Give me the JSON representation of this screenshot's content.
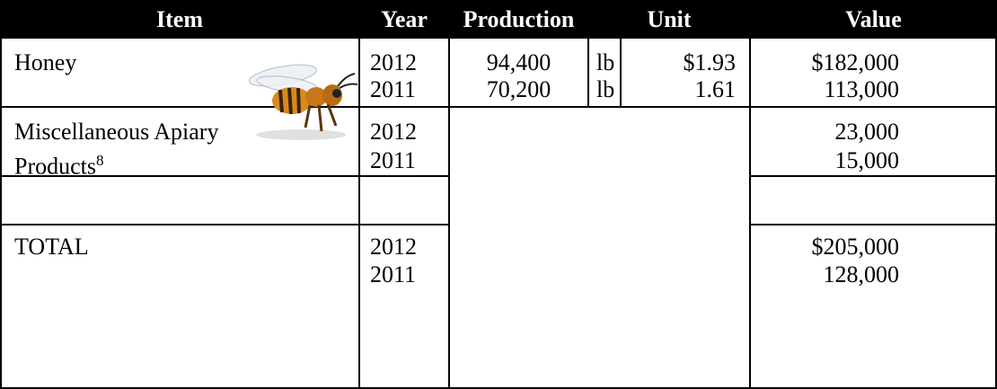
{
  "table": {
    "header": [
      "Item",
      "Year",
      "Production",
      "Unit",
      "Value"
    ],
    "rows": [
      {
        "item": "Honey",
        "years": [
          "2012",
          "2011"
        ],
        "production": [
          "94,400",
          "70,200"
        ],
        "unit": [
          "lb",
          "lb"
        ],
        "price": [
          "$1.93",
          "1.61"
        ],
        "value": [
          "$182,000",
          "113,000"
        ]
      },
      {
        "item": "Miscellaneous Apiary Products",
        "footnote": "8",
        "years": [
          "2012",
          "2011"
        ],
        "value": [
          "23,000",
          "15,000"
        ]
      },
      {
        "item": "TOTAL",
        "years": [
          "2012",
          "2011"
        ],
        "value": [
          "$205,000",
          "128,000"
        ]
      }
    ]
  }
}
